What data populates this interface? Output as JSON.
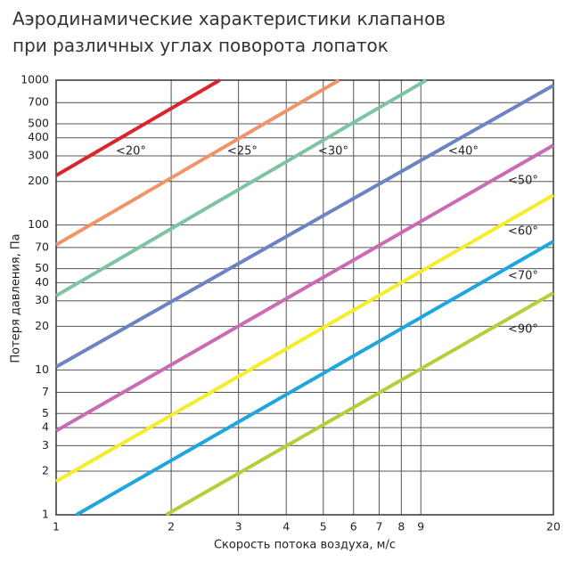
{
  "chart_data": {
    "type": "line",
    "title": [
      "Аэродинамические характеристики клапанов",
      "при различных углах поворота лопаток"
    ],
    "x_label": "Скорость потока воздуха, м/с",
    "y_label": "Потеря давления, Па",
    "log_x": true,
    "log_y": true,
    "grid": true,
    "xlim": [
      1,
      20
    ],
    "ylim": [
      1,
      1000
    ],
    "xticks": [
      1,
      2,
      3,
      4,
      5,
      6,
      7,
      8,
      9,
      20
    ],
    "yticks": [
      1,
      2,
      3,
      4,
      5,
      7,
      10,
      20,
      30,
      40,
      50,
      70,
      100,
      200,
      300,
      400,
      500,
      700,
      1000
    ],
    "series": [
      {
        "name": "<20°",
        "color": "#d8262b",
        "x": [
          1,
          2.68
        ],
        "values": [
          220,
          1000
        ]
      },
      {
        "name": "<25°",
        "color": "#f0956a",
        "x": [
          1,
          5.5
        ],
        "values": [
          73,
          1000
        ]
      },
      {
        "name": "<30°",
        "color": "#7fc4a0",
        "x": [
          1,
          9.3
        ],
        "values": [
          32.5,
          1000
        ]
      },
      {
        "name": "<40°",
        "color": "#6c84c4",
        "x": [
          1,
          20
        ],
        "values": [
          10.5,
          920
        ]
      },
      {
        "name": "<50°",
        "color": "#c96cb4",
        "x": [
          1,
          20
        ],
        "values": [
          3.8,
          355
        ]
      },
      {
        "name": "<60°",
        "color": "#f5ec2a",
        "x": [
          1,
          20
        ],
        "values": [
          1.7,
          161
        ]
      },
      {
        "name": "<70°",
        "color": "#1fa6df",
        "x": [
          1.13,
          20
        ],
        "values": [
          1,
          77
        ]
      },
      {
        "name": "<90°",
        "color": "#b5cf3a",
        "x": [
          1.94,
          20
        ],
        "values": [
          1,
          34
        ]
      }
    ]
  }
}
